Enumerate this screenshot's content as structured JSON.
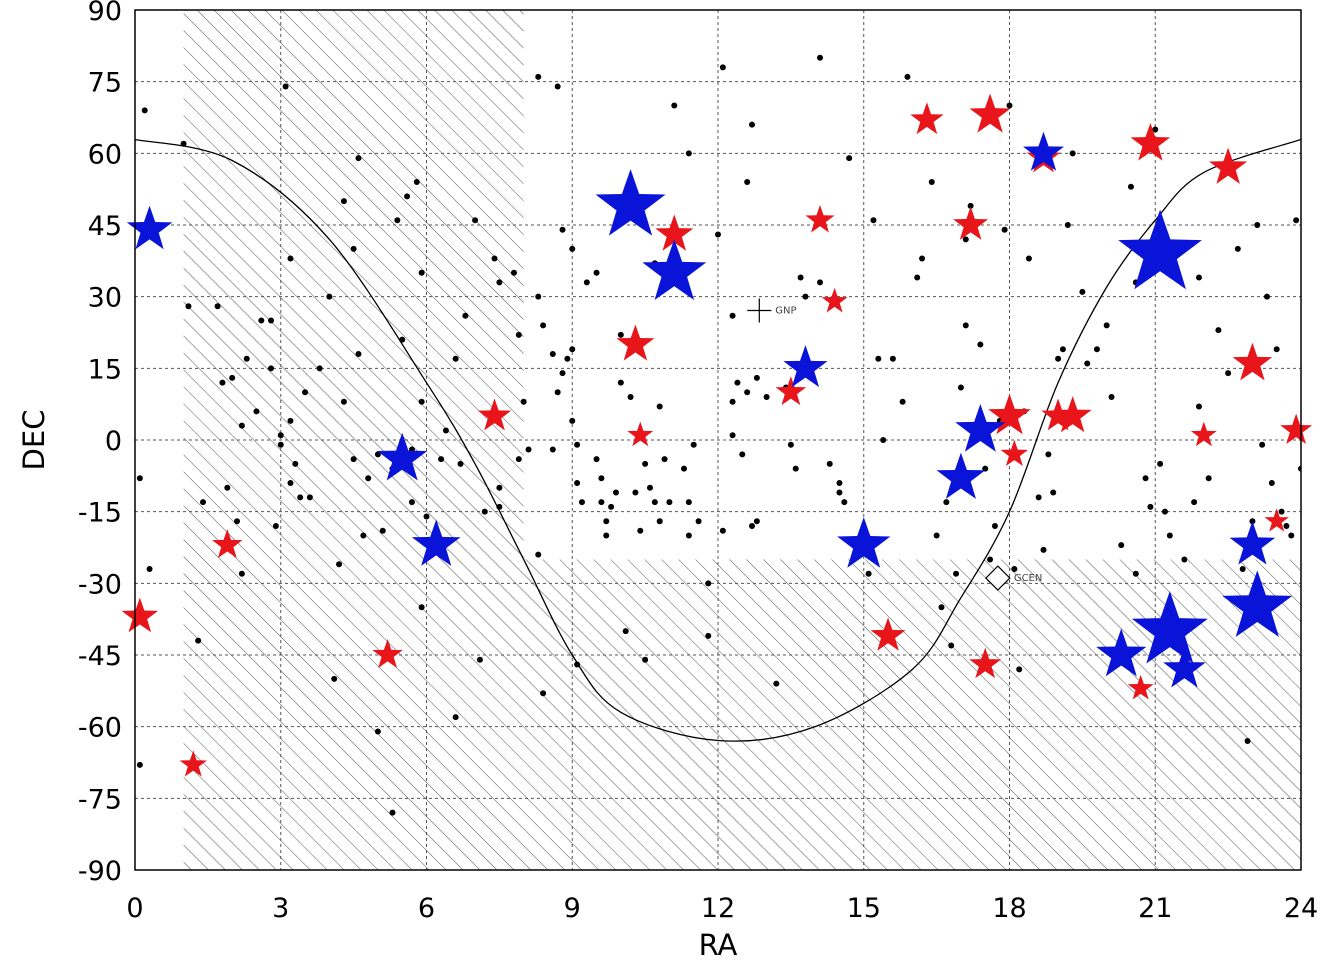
{
  "chart_data": {
    "type": "scatter",
    "xlabel": "RA",
    "ylabel": "DEC",
    "xlim": [
      0,
      24
    ],
    "ylim": [
      -90,
      90
    ],
    "x_ticks": [
      "0",
      "3",
      "6",
      "9",
      "12",
      "15",
      "18",
      "21",
      "24"
    ],
    "y_ticks": [
      "90",
      "75",
      "60",
      "45",
      "30",
      "15",
      "0",
      "-15",
      "-30",
      "-45",
      "-60",
      "-75",
      "-90"
    ],
    "grid": true,
    "colors": {
      "red_star": "#e8161b",
      "blue_star": "#0a14d8",
      "dot": "#000000",
      "hatch": "#555555"
    },
    "shaded_regions": [
      {
        "ra": [
          1,
          8
        ],
        "dec": [
          -90,
          90
        ]
      },
      {
        "ra": [
          8,
          24
        ],
        "dec": [
          -90,
          -25
        ]
      }
    ],
    "galactic_plane": {
      "description_free": true,
      "points": [
        [
          0,
          62.9
        ],
        [
          2,
          58.5
        ],
        [
          4,
          42
        ],
        [
          6,
          12
        ],
        [
          7,
          -5
        ],
        [
          8,
          -25
        ],
        [
          9,
          -45
        ],
        [
          10,
          -57
        ],
        [
          12,
          -62.9
        ],
        [
          14,
          -60
        ],
        [
          16,
          -48
        ],
        [
          17,
          -33
        ],
        [
          18,
          -15
        ],
        [
          19,
          12
        ],
        [
          20,
          32
        ],
        [
          21,
          46
        ],
        [
          22,
          56
        ],
        [
          24,
          62.9
        ]
      ]
    },
    "markers": [
      {
        "label": "GNP",
        "ra": 12.85,
        "dec": 27.1,
        "symbol": "plus"
      },
      {
        "label": "GCEN",
        "ra": 17.76,
        "dec": -28.9,
        "symbol": "diamond"
      }
    ],
    "series": [
      {
        "marker": "dot",
        "points": [
          [
            0.2,
            69
          ],
          [
            0.1,
            -8
          ],
          [
            0.3,
            -27
          ],
          [
            0.1,
            -68
          ],
          [
            1.0,
            62
          ],
          [
            1.1,
            28
          ],
          [
            1.4,
            -13
          ],
          [
            1.3,
            -42
          ],
          [
            1.8,
            12
          ],
          [
            1.7,
            28
          ],
          [
            1.9,
            -10
          ],
          [
            2.0,
            13
          ],
          [
            2.1,
            -17
          ],
          [
            2.2,
            -28
          ],
          [
            2.2,
            3
          ],
          [
            2.3,
            17
          ],
          [
            2.5,
            6
          ],
          [
            2.6,
            25
          ],
          [
            2.8,
            25
          ],
          [
            2.8,
            15
          ],
          [
            2.9,
            -18
          ],
          [
            3.0,
            1
          ],
          [
            3.0,
            -1
          ],
          [
            3.2,
            4
          ],
          [
            3.2,
            -9
          ],
          [
            3.3,
            -5
          ],
          [
            3.4,
            -12
          ],
          [
            3.1,
            74
          ],
          [
            3.2,
            38
          ],
          [
            3.6,
            -12
          ],
          [
            3.5,
            10
          ],
          [
            3.8,
            15
          ],
          [
            4.1,
            -50
          ],
          [
            4.0,
            30
          ],
          [
            4.2,
            -26
          ],
          [
            4.3,
            50
          ],
          [
            4.3,
            8
          ],
          [
            4.5,
            40
          ],
          [
            4.5,
            -4
          ],
          [
            4.6,
            59
          ],
          [
            4.7,
            -20
          ],
          [
            4.8,
            -8
          ],
          [
            4.6,
            18
          ],
          [
            5.0,
            -3
          ],
          [
            5.0,
            -61
          ],
          [
            5.1,
            -19
          ],
          [
            5.3,
            -6
          ],
          [
            5.4,
            46
          ],
          [
            5.5,
            21
          ],
          [
            5.3,
            -78
          ],
          [
            5.6,
            51
          ],
          [
            5.7,
            -2
          ],
          [
            5.8,
            54
          ],
          [
            5.9,
            35
          ],
          [
            5.9,
            8
          ],
          [
            5.7,
            -13
          ],
          [
            6.0,
            -16
          ],
          [
            5.9,
            -35
          ],
          [
            6.3,
            -4
          ],
          [
            6.4,
            2
          ],
          [
            6.6,
            -58
          ],
          [
            6.6,
            17
          ],
          [
            6.7,
            -5
          ],
          [
            6.8,
            26
          ],
          [
            7.0,
            46
          ],
          [
            7.1,
            -46
          ],
          [
            7.4,
            38
          ],
          [
            7.5,
            33
          ],
          [
            7.5,
            -10
          ],
          [
            7.5,
            -14
          ],
          [
            7.2,
            -15
          ],
          [
            7.9,
            22
          ],
          [
            8.0,
            8
          ],
          [
            7.9,
            -4
          ],
          [
            8.1,
            -2
          ],
          [
            7.8,
            35
          ],
          [
            8.4,
            24
          ],
          [
            8.3,
            30
          ],
          [
            8.3,
            -24
          ],
          [
            8.4,
            -53
          ],
          [
            8.6,
            -2
          ],
          [
            8.7,
            10
          ],
          [
            8.6,
            18
          ],
          [
            8.8,
            14
          ],
          [
            8.9,
            17
          ],
          [
            9.0,
            19
          ],
          [
            9.0,
            4
          ],
          [
            9.1,
            -1
          ],
          [
            9.1,
            -9
          ],
          [
            9.2,
            -13
          ],
          [
            8.7,
            74
          ],
          [
            8.3,
            76
          ],
          [
            8.8,
            44
          ],
          [
            9.0,
            40
          ],
          [
            9.1,
            -47
          ],
          [
            9.3,
            33
          ],
          [
            9.5,
            35
          ],
          [
            9.5,
            -4
          ],
          [
            9.6,
            -8
          ],
          [
            9.6,
            -13
          ],
          [
            9.7,
            -17
          ],
          [
            9.7,
            -20
          ],
          [
            9.8,
            -14
          ],
          [
            9.9,
            -11
          ],
          [
            10.0,
            22
          ],
          [
            10.0,
            12
          ],
          [
            10.2,
            9
          ],
          [
            10.3,
            -11
          ],
          [
            10.1,
            -40
          ],
          [
            10.4,
            -19
          ],
          [
            10.5,
            -5
          ],
          [
            10.5,
            -46
          ],
          [
            10.6,
            -10
          ],
          [
            10.7,
            -13
          ],
          [
            10.7,
            37
          ],
          [
            10.8,
            7
          ],
          [
            10.8,
            -17
          ],
          [
            10.9,
            -4
          ],
          [
            11.0,
            -13
          ],
          [
            11.1,
            70
          ],
          [
            11.2,
            33
          ],
          [
            11.3,
            -6
          ],
          [
            11.4,
            -13
          ],
          [
            11.5,
            -1
          ],
          [
            11.4,
            60
          ],
          [
            11.4,
            -20
          ],
          [
            11.6,
            -17
          ],
          [
            11.8,
            -41
          ],
          [
            11.8,
            -30
          ],
          [
            12.0,
            43
          ],
          [
            12.1,
            78
          ],
          [
            12.1,
            -19
          ],
          [
            12.3,
            1
          ],
          [
            12.5,
            -3
          ],
          [
            12.3,
            8
          ],
          [
            12.3,
            26
          ],
          [
            12.4,
            12
          ],
          [
            12.6,
            54
          ],
          [
            12.7,
            66
          ],
          [
            12.8,
            -17
          ],
          [
            12.6,
            10
          ],
          [
            12.7,
            -18
          ],
          [
            12.8,
            13
          ],
          [
            13.0,
            9
          ],
          [
            13.2,
            -51
          ],
          [
            13.4,
            11
          ],
          [
            13.5,
            -1
          ],
          [
            13.6,
            -6
          ],
          [
            13.7,
            34
          ],
          [
            13.8,
            30
          ],
          [
            14.1,
            33
          ],
          [
            14.1,
            80
          ],
          [
            14.3,
            -5
          ],
          [
            14.5,
            -9
          ],
          [
            14.5,
            -11
          ],
          [
            14.6,
            -13
          ],
          [
            14.7,
            59
          ],
          [
            14.8,
            -21
          ],
          [
            15.1,
            -28
          ],
          [
            15.2,
            46
          ],
          [
            15.3,
            17
          ],
          [
            15.4,
            0
          ],
          [
            15.6,
            17
          ],
          [
            15.8,
            8
          ],
          [
            15.9,
            76
          ],
          [
            16.1,
            34
          ],
          [
            16.2,
            38
          ],
          [
            16.4,
            54
          ],
          [
            16.5,
            -20
          ],
          [
            16.6,
            -35
          ],
          [
            16.7,
            -13
          ],
          [
            16.8,
            -43
          ],
          [
            16.9,
            -28
          ],
          [
            16.9,
            -10
          ],
          [
            17.0,
            11
          ],
          [
            17.1,
            24
          ],
          [
            17.1,
            42
          ],
          [
            17.2,
            49
          ],
          [
            17.4,
            20
          ],
          [
            17.5,
            -6
          ],
          [
            17.6,
            -25
          ],
          [
            17.7,
            -18
          ],
          [
            17.8,
            4
          ],
          [
            17.9,
            44
          ],
          [
            18.0,
            70
          ],
          [
            18.1,
            -27
          ],
          [
            18.2,
            -48
          ],
          [
            18.3,
            6
          ],
          [
            18.4,
            38
          ],
          [
            18.6,
            -12
          ],
          [
            18.7,
            -23
          ],
          [
            18.8,
            -3
          ],
          [
            18.9,
            -11
          ],
          [
            19.0,
            17
          ],
          [
            19.1,
            19
          ],
          [
            19.2,
            45
          ],
          [
            19.3,
            60
          ],
          [
            19.5,
            31
          ],
          [
            19.6,
            16
          ],
          [
            19.8,
            19
          ],
          [
            20.0,
            24
          ],
          [
            20.1,
            9
          ],
          [
            20.3,
            -22
          ],
          [
            20.5,
            53
          ],
          [
            20.6,
            -28
          ],
          [
            20.8,
            -8
          ],
          [
            20.9,
            -14
          ],
          [
            21.1,
            -5
          ],
          [
            21.2,
            -15
          ],
          [
            21.3,
            -20
          ],
          [
            21.6,
            -25
          ],
          [
            21.8,
            -13
          ],
          [
            21.9,
            34
          ],
          [
            22.1,
            -8
          ],
          [
            22.3,
            23
          ],
          [
            22.5,
            14
          ],
          [
            22.7,
            40
          ],
          [
            22.8,
            -27
          ],
          [
            23.0,
            -17
          ],
          [
            23.1,
            45
          ],
          [
            23.2,
            -1
          ],
          [
            23.3,
            30
          ],
          [
            23.4,
            -9
          ],
          [
            23.5,
            19
          ],
          [
            23.6,
            -15
          ],
          [
            23.7,
            -18
          ],
          [
            23.8,
            -20
          ],
          [
            23.9,
            46
          ],
          [
            24.0,
            -6
          ],
          [
            22.9,
            -63
          ],
          [
            21.9,
            7
          ],
          [
            21.0,
            65
          ],
          [
            20.9,
            37
          ],
          [
            20.6,
            33
          ]
        ]
      },
      {
        "marker": "red-star",
        "points": [
          [
            0.1,
            -37,
            2.4
          ],
          [
            1.2,
            -68,
            1.8
          ],
          [
            1.9,
            -22,
            2.0
          ],
          [
            5.2,
            -45,
            2.0
          ],
          [
            7.4,
            5,
            2.2
          ],
          [
            10.3,
            20,
            2.5
          ],
          [
            10.4,
            1,
            1.7
          ],
          [
            11.1,
            43,
            2.5
          ],
          [
            13.5,
            10,
            2.0
          ],
          [
            14.1,
            46,
            1.9
          ],
          [
            14.4,
            29,
            1.7
          ],
          [
            15.5,
            -41,
            2.3
          ],
          [
            16.3,
            67,
            2.2
          ],
          [
            17.2,
            45,
            2.3
          ],
          [
            17.5,
            -47,
            2.1
          ],
          [
            17.6,
            68,
            2.7
          ],
          [
            18.0,
            5,
            2.8
          ],
          [
            18.1,
            -3,
            1.8
          ],
          [
            18.7,
            59,
            2.2
          ],
          [
            19.0,
            5,
            2.2
          ],
          [
            19.3,
            5,
            2.5
          ],
          [
            20.7,
            -52,
            1.7
          ],
          [
            20.9,
            62,
            2.6
          ],
          [
            22.0,
            1,
            1.7
          ],
          [
            22.5,
            57,
            2.5
          ],
          [
            23.0,
            16,
            2.6
          ],
          [
            23.5,
            -17,
            1.6
          ],
          [
            23.9,
            2,
            2.1
          ]
        ]
      },
      {
        "marker": "blue-star",
        "points": [
          [
            0.3,
            44,
            3.0
          ],
          [
            5.5,
            -4,
            3.3
          ],
          [
            6.2,
            -22,
            3.2
          ],
          [
            10.2,
            49,
            4.6
          ],
          [
            11.1,
            35,
            4.2
          ],
          [
            13.8,
            15,
            2.9
          ],
          [
            15.0,
            -22,
            3.5
          ],
          [
            17.0,
            -8,
            3.2
          ],
          [
            17.4,
            2,
            3.3
          ],
          [
            18.7,
            60,
            2.7
          ],
          [
            20.3,
            -45,
            3.3
          ],
          [
            21.1,
            39,
            5.5
          ],
          [
            21.3,
            -40,
            5.0
          ],
          [
            21.6,
            -48,
            2.8
          ],
          [
            23.0,
            -22,
            3.0
          ],
          [
            23.1,
            -35,
            4.6
          ]
        ]
      }
    ]
  }
}
